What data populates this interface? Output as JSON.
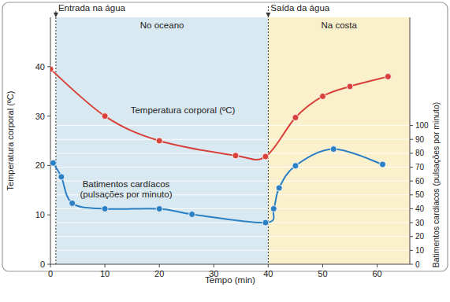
{
  "chart_data": {
    "type": "line",
    "x_label": "Tempo (min)",
    "y_label": "Temperatura corporal (ºC)",
    "y2_label": "Batimentos cardíacos (pulsações por minuto)",
    "xlim": [
      0,
      66
    ],
    "xticks": [
      0,
      10,
      20,
      30,
      40,
      50,
      60
    ],
    "ylim": [
      0,
      50
    ],
    "yticks": [
      0,
      10,
      20,
      30,
      40
    ],
    "y2lim": [
      0,
      178
    ],
    "y2ticks": [
      0,
      10,
      20,
      30,
      40,
      50,
      60,
      70,
      80,
      90,
      100
    ],
    "grid": true,
    "regions": [
      {
        "label": "No oceano",
        "start": 1,
        "end": 40,
        "color": "#d9e9f1"
      },
      {
        "label": "Na costa",
        "start": 40,
        "end": 66,
        "color": "#faf0cc"
      }
    ],
    "annotations": [
      {
        "text": "Entrada na água",
        "x": 1
      },
      {
        "text": "Saída da água",
        "x": 40
      }
    ],
    "series": [
      {
        "name": "Temperatura corporal (ºC)",
        "color": "#d8403a",
        "marker": "circle",
        "x": [
          0,
          10,
          20,
          34,
          39.5,
          45,
          50,
          55,
          62
        ],
        "values": [
          39.5,
          30,
          25,
          22,
          21.8,
          29.7,
          34,
          36,
          38
        ]
      },
      {
        "name": "Batimentos cardíacos (pulsações por minuto)",
        "color": "#2b7fc3",
        "marker": "circle",
        "axis": "y2",
        "x": [
          0.5,
          2,
          4,
          10,
          20,
          26,
          39.5,
          41,
          42,
          45,
          52,
          61
        ],
        "values": [
          73,
          63,
          44,
          40,
          40,
          36,
          30,
          40,
          55,
          71,
          83,
          72
        ]
      }
    ]
  }
}
